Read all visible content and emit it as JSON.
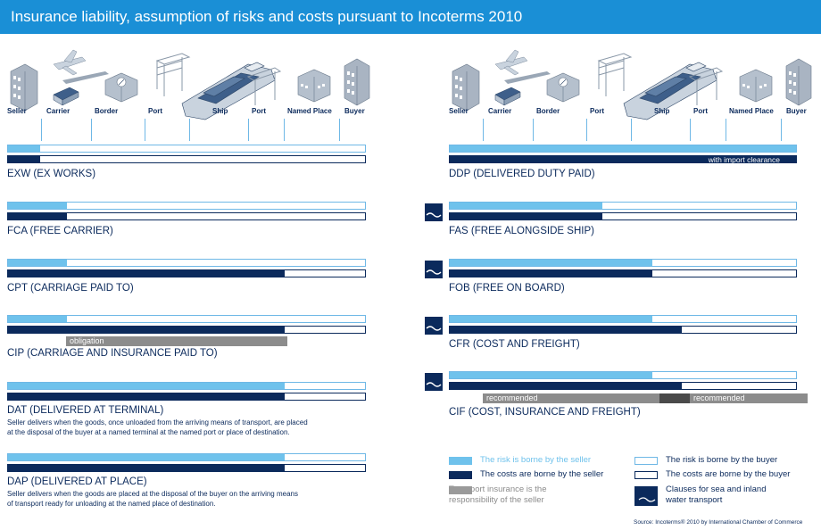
{
  "title": "Insurance liability, assumption of risks and costs pursuant to Incoterms 2010",
  "stages": [
    "Seller",
    "Carrier",
    "Border",
    "Port",
    "Ship",
    "Port",
    "Named Place",
    "Buyer"
  ],
  "terms": {
    "exw": {
      "name": "EXW (EX WORKS)",
      "risk": 0.09,
      "cost": 0.09
    },
    "fca": {
      "name": "FCA (FREE CARRIER)",
      "risk": 0.165,
      "cost": 0.165
    },
    "cpt": {
      "name": "CPT (CARRIAGE PAID TO)",
      "risk": 0.165,
      "cost": 0.775
    },
    "cip": {
      "name": "CIP (CARRIAGE AND INSURANCE PAID TO)",
      "risk": 0.165,
      "cost": 0.775,
      "insurance_label": "obligation"
    },
    "dat": {
      "name": "DAT (DELIVERED AT TERMINAL)",
      "risk": 0.775,
      "cost": 0.775,
      "desc1": "Seller delivers when the goods, once unloaded from the arriving means of transport, are placed",
      "desc2": "at the disposal of the buyer at a named terminal at the named port or place of destination."
    },
    "dap": {
      "name": "DAP (DELIVERED AT PLACE)",
      "risk": 0.775,
      "cost": 0.775,
      "desc1": "Seller delivers when the goods are placed at the disposal of the buyer on the arriving means",
      "desc2": "of transport ready for unloading at the named place of destination."
    },
    "ddp": {
      "name": "DDP (DELIVERED DUTY PAID)",
      "risk": 1.0,
      "cost": 1.0,
      "cost_label": "with import clearance"
    },
    "fas": {
      "name": "FAS (FREE ALONGSIDE SHIP)",
      "risk": 0.44,
      "cost": 0.44
    },
    "fob": {
      "name": "FOB (FREE ON BOARD)",
      "risk": 0.585,
      "cost": 0.585
    },
    "cfr": {
      "name": "CFR (COST AND FREIGHT)",
      "risk": 0.585,
      "cost": 0.67
    },
    "cif": {
      "name": "CIF (COST, INSURANCE AND FREIGHT)",
      "risk": 0.585,
      "cost": 0.67,
      "insurance_label_1": "recommended",
      "insurance_label_2": "recommended"
    }
  },
  "legend": {
    "risk_seller": "The risk is borne by the seller",
    "cost_seller": "The costs are borne by the seller",
    "insurance_1": "Transport insurance is the",
    "insurance_2": "responsibility of the seller",
    "risk_buyer": "The risk is borne by the buyer",
    "cost_buyer": "The costs are borne  by the buyer",
    "sea_1": "Clauses for sea and inland",
    "sea_2": "water transport"
  },
  "source": "Source: Incoterms® 2010 by International Chamber of Commerce",
  "colors": {
    "header": "#1a8fd6",
    "navy": "#0b2a5c",
    "light_blue": "#6fc2ec",
    "grey": "#8c8c8c"
  }
}
